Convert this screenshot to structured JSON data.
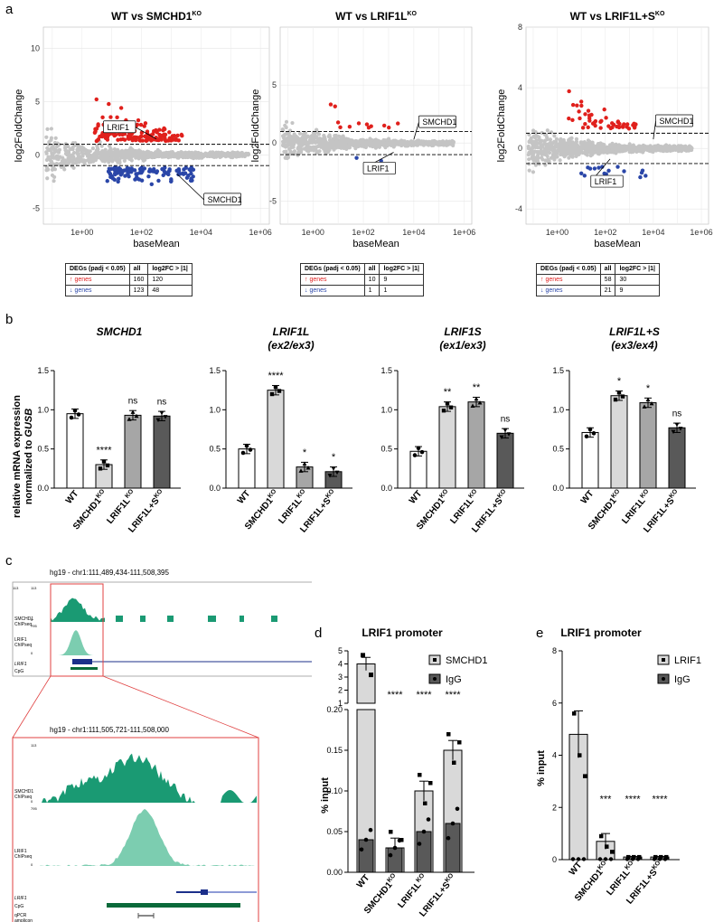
{
  "panel_letters": {
    "a": "a",
    "b": "b",
    "c": "c",
    "d": "d",
    "e": "e"
  },
  "panel_a": {
    "xlabel": "baseMean",
    "ylabel": "log2FoldChange",
    "xticks": [
      "1e+00",
      "1e+02",
      "1e+04",
      "1e+06"
    ],
    "plots": [
      {
        "title": "WT vs SMCHD1",
        "title_sup": "KO",
        "yticks": [
          "-5",
          "0",
          "5",
          "10"
        ],
        "labels": [
          "LRIF1",
          "SMCHD1"
        ],
        "table": {
          "h": [
            "DEGs (padj < 0.05)",
            "all",
            "log2FC > |1|"
          ],
          "up": [
            "↑ genes",
            "160",
            "120"
          ],
          "down": [
            "↓ genes",
            "123",
            "48"
          ]
        }
      },
      {
        "title": "WT vs LRIF1L",
        "title_sup": "KO",
        "yticks": [
          "-5",
          "0",
          "5"
        ],
        "labels": [
          "SMCHD1",
          "LRIF1"
        ],
        "table": {
          "h": [
            "DEGs (padj < 0.05)",
            "all",
            "log2FC > |1|"
          ],
          "up": [
            "↑ genes",
            "10",
            "9"
          ],
          "down": [
            "↓ genes",
            "1",
            "1"
          ]
        }
      },
      {
        "title": "WT vs LRIF1L+S",
        "title_sup": "KO",
        "yticks": [
          "-4",
          "0",
          "4",
          "8"
        ],
        "labels": [
          "SMCHD1",
          "LRIF1"
        ],
        "table": {
          "h": [
            "DEGs (padj < 0.05)",
            "all",
            "log2FC > |1|"
          ],
          "up": [
            "↑ genes",
            "58",
            "30"
          ],
          "down": [
            "↓ genes",
            "21",
            "9"
          ]
        }
      }
    ]
  },
  "panel_b": {
    "ylabel_line1": "relative mRNA expression",
    "ylabel_line2": "normalized to",
    "ylabel_gene": "GUSB",
    "yticks": [
      "0.0",
      "0.5",
      "1.0",
      "1.5"
    ],
    "categories": [
      "WT",
      "SMCHD1",
      "LRIF1L",
      "LRIF1L+S"
    ],
    "cat_sup": "KO",
    "plots": [
      {
        "title": "SMCHD1",
        "subtitle": "",
        "values": [
          0.95,
          0.3,
          0.93,
          0.92
        ],
        "sig": [
          "",
          "****",
          "ns",
          "ns"
        ]
      },
      {
        "title": "LRIF1L",
        "subtitle": "(ex2/ex3)",
        "values": [
          0.5,
          1.25,
          0.27,
          0.21
        ],
        "sig": [
          "",
          "****",
          "*",
          "*"
        ]
      },
      {
        "title": "LRIF1S",
        "subtitle": "(ex1/ex3)",
        "values": [
          0.47,
          1.04,
          1.1,
          0.7
        ],
        "sig": [
          "",
          "**",
          "**",
          "ns"
        ]
      },
      {
        "title": "LRIF1L+S",
        "subtitle": "(ex3/ex4)",
        "values": [
          0.71,
          1.18,
          1.09,
          0.77
        ],
        "sig": [
          "",
          "*",
          "*",
          "ns"
        ]
      }
    ]
  },
  "panel_c": {
    "coords_top": "hg19 - chr1:111,489,434-111,508,395",
    "coords_zoom": "hg19 - chr1:111,505,721-111,508,000",
    "track1": "SMCHD1",
    "track1b": "ChIPseq",
    "track2": "LRIF1",
    "track2b": "ChIPseq",
    "gene": "LRIF1",
    "cpg": "CpG",
    "qpcr1": "qPCR",
    "qpcr2": "amplicon",
    "scale1": "113",
    "scale2": "795",
    "zero": "0"
  },
  "panel_d": {
    "title": "LRIF1 promoter",
    "ylabel": "% input",
    "yticks_top": [
      "1",
      "2",
      "3",
      "4",
      "5"
    ],
    "yticks_bottom": [
      "0.00",
      "0.05",
      "0.10",
      "0.15",
      "0.20"
    ],
    "categories": [
      "WT",
      "SMCHD1",
      "LRIF1L",
      "LRIF1L+S"
    ],
    "cat_sup": "KO",
    "legend": [
      "SMCHD1",
      "IgG"
    ],
    "sig": [
      "****",
      "****",
      "****"
    ],
    "chart_data": {
      "type": "bar",
      "series": [
        {
          "name": "SMCHD1",
          "values": [
            4.0,
            0.03,
            0.1,
            0.15
          ]
        },
        {
          "name": "IgG",
          "values": [
            0.04,
            0.03,
            0.05,
            0.06
          ]
        }
      ]
    }
  },
  "panel_e": {
    "title": "LRIF1 promoter",
    "ylabel": "% input",
    "yticks": [
      "0",
      "2",
      "4",
      "6",
      "8"
    ],
    "categories": [
      "WT",
      "SMCHD1",
      "LRIF1L",
      "LRIF1L+S"
    ],
    "cat_sup": "KO",
    "legend": [
      "LRIF1",
      "IgG"
    ],
    "sig": [
      "***",
      "****",
      "****"
    ],
    "chart_data": {
      "type": "bar",
      "series": [
        {
          "name": "LRIF1",
          "values": [
            4.8,
            0.7,
            0.1,
            0.1
          ]
        },
        {
          "name": "IgG",
          "values": [
            0.02,
            0.02,
            0.02,
            0.02
          ]
        }
      ]
    }
  }
}
